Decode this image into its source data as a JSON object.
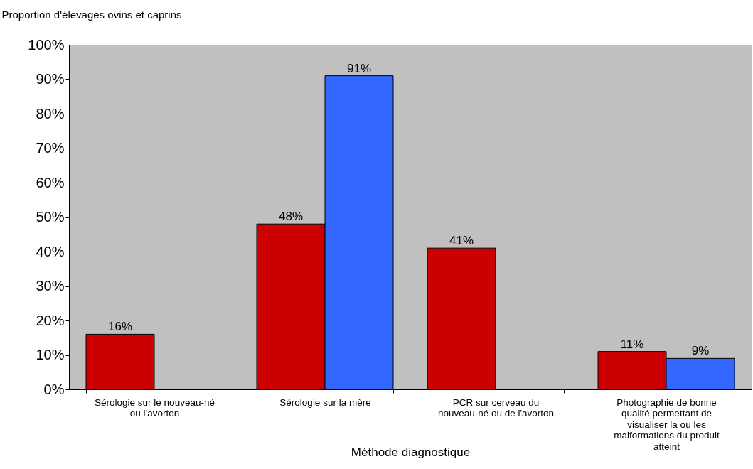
{
  "chart_data": {
    "type": "bar",
    "ylabel": "Proportion d'élevages ovins et caprins",
    "xlabel": "Méthode diagnostique",
    "categories": [
      "Sérologie sur le nouveau-né ou l'avorton",
      "Sérologie sur la mère",
      "PCR sur cerveau du nouveau-né ou de l'avorton",
      "Photographie de bonne qualité permettant de visualiser la ou les malformations du produit atteint"
    ],
    "series": [
      {
        "color": "#cc0000",
        "values": [
          16,
          48,
          41,
          11
        ],
        "value_labels": [
          "16%",
          "48%",
          "41%",
          "11%"
        ]
      },
      {
        "color": "#3366ff",
        "values": [
          null,
          91,
          null,
          9
        ],
        "value_labels": [
          null,
          "91%",
          null,
          "9%"
        ]
      }
    ],
    "ylim": [
      0,
      100
    ],
    "yticks": [
      {
        "value": 0,
        "label": "0%"
      },
      {
        "value": 10,
        "label": "10%"
      },
      {
        "value": 20,
        "label": "20%"
      },
      {
        "value": 30,
        "label": "30%"
      },
      {
        "value": 40,
        "label": "40%"
      },
      {
        "value": 50,
        "label": "50%"
      },
      {
        "value": 60,
        "label": "60%"
      },
      {
        "value": 70,
        "label": "70%"
      },
      {
        "value": 80,
        "label": "80%"
      },
      {
        "value": 90,
        "label": "90%"
      },
      {
        "value": 100,
        "label": "100%"
      }
    ],
    "grid": false,
    "legend": false
  }
}
